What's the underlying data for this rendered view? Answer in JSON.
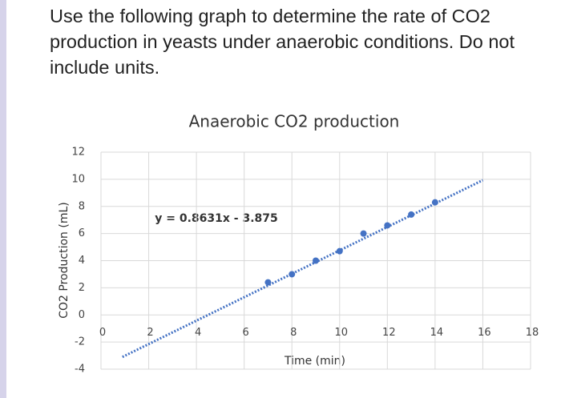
{
  "question": "Use the following graph to determine the rate of CO2 production in yeasts under anaerobic conditions. Do not include units.",
  "chart_data": {
    "type": "scatter",
    "title": "Anaerobic CO2 production",
    "x_label": "Time (min)",
    "y_label": "CO2 Production (mL)",
    "series": [
      {
        "name": "CO2 production",
        "color": "#4472c4",
        "x": [
          7,
          8,
          9,
          10,
          11,
          12,
          13,
          14
        ],
        "values": [
          2.4,
          3.0,
          4.0,
          4.7,
          6.0,
          6.6,
          7.4,
          8.3
        ]
      }
    ],
    "trendline": {
      "label": "y = 0.8631x - 3.875",
      "slope": 0.8631,
      "intercept": -3.875,
      "x_range": [
        0.9,
        16
      ],
      "style": "dotted"
    },
    "xlim": [
      0,
      18
    ],
    "xticks": [
      0,
      2,
      4,
      6,
      8,
      10,
      12,
      14,
      16,
      18
    ],
    "ylim": [
      -4,
      12
    ],
    "yticks": [
      -4,
      -2,
      0,
      2,
      4,
      6,
      8,
      10,
      12
    ],
    "grid": true
  }
}
